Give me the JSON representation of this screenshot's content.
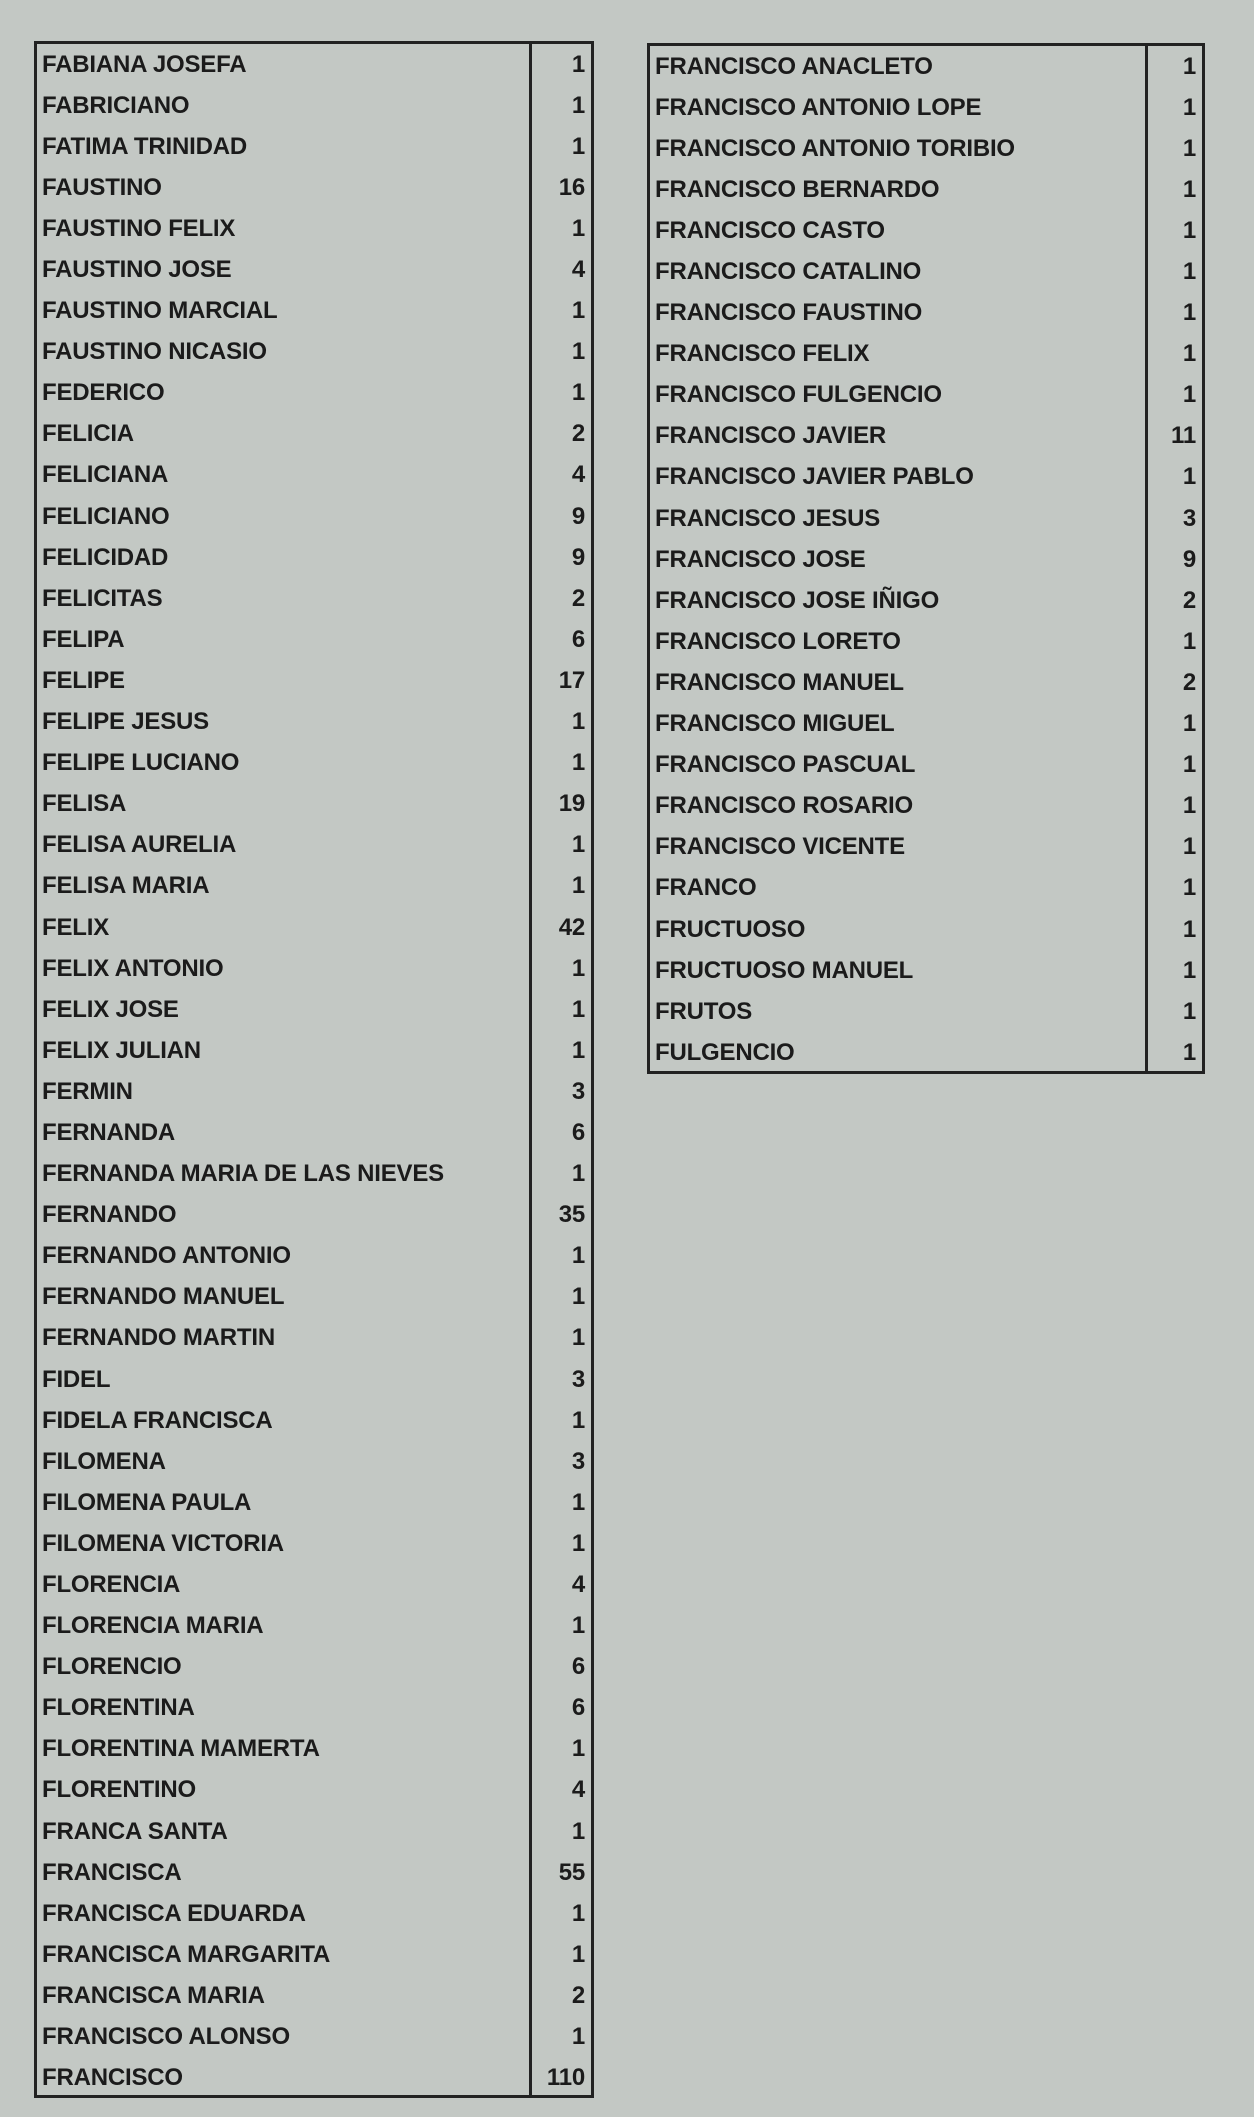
{
  "left_table": [
    [
      "FABIANA JOSEFA",
      "1"
    ],
    [
      "FABRICIANO",
      "1"
    ],
    [
      "FATIMA TRINIDAD",
      "1"
    ],
    [
      "FAUSTINO",
      "16"
    ],
    [
      "FAUSTINO FELIX",
      "1"
    ],
    [
      "FAUSTINO JOSE",
      "4"
    ],
    [
      "FAUSTINO MARCIAL",
      "1"
    ],
    [
      "FAUSTINO NICASIO",
      "1"
    ],
    [
      "FEDERICO",
      "1"
    ],
    [
      "FELICIA",
      "2"
    ],
    [
      "FELICIANA",
      "4"
    ],
    [
      "FELICIANO",
      "9"
    ],
    [
      "FELICIDAD",
      "9"
    ],
    [
      "FELICITAS",
      "2"
    ],
    [
      "FELIPA",
      "6"
    ],
    [
      "FELIPE",
      "17"
    ],
    [
      "FELIPE JESUS",
      "1"
    ],
    [
      "FELIPE LUCIANO",
      "1"
    ],
    [
      "FELISA",
      "19"
    ],
    [
      "FELISA AURELIA",
      "1"
    ],
    [
      "FELISA MARIA",
      "1"
    ],
    [
      "FELIX",
      "42"
    ],
    [
      "FELIX ANTONIO",
      "1"
    ],
    [
      "FELIX JOSE",
      "1"
    ],
    [
      "FELIX JULIAN",
      "1"
    ],
    [
      "FERMIN",
      "3"
    ],
    [
      "FERNANDA",
      "6"
    ],
    [
      "FERNANDA MARIA DE LAS NIEVES",
      "1"
    ],
    [
      "FERNANDO",
      "35"
    ],
    [
      "FERNANDO ANTONIO",
      "1"
    ],
    [
      "FERNANDO MANUEL",
      "1"
    ],
    [
      "FERNANDO MARTIN",
      "1"
    ],
    [
      "FIDEL",
      "3"
    ],
    [
      "FIDELA FRANCISCA",
      "1"
    ],
    [
      "FILOMENA",
      "3"
    ],
    [
      "FILOMENA PAULA",
      "1"
    ],
    [
      "FILOMENA VICTORIA",
      "1"
    ],
    [
      "FLORENCIA",
      "4"
    ],
    [
      "FLORENCIA MARIA",
      "1"
    ],
    [
      "FLORENCIO",
      "6"
    ],
    [
      "FLORENTINA",
      "6"
    ],
    [
      "FLORENTINA MAMERTA",
      "1"
    ],
    [
      "FLORENTINO",
      "4"
    ],
    [
      "FRANCA SANTA",
      "1"
    ],
    [
      "FRANCISCA",
      "55"
    ],
    [
      "FRANCISCA EDUARDA",
      "1"
    ],
    [
      "FRANCISCA MARGARITA",
      "1"
    ],
    [
      "FRANCISCA MARIA",
      "2"
    ],
    [
      "FRANCISCO ALONSO",
      "1"
    ],
    [
      "FRANCISCO",
      "110"
    ]
  ],
  "right_table": [
    [
      "FRANCISCO ANACLETO",
      "1"
    ],
    [
      "FRANCISCO ANTONIO LOPE",
      "1"
    ],
    [
      "FRANCISCO ANTONIO TORIBIO",
      "1"
    ],
    [
      "FRANCISCO BERNARDO",
      "1"
    ],
    [
      "FRANCISCO CASTO",
      "1"
    ],
    [
      "FRANCISCO CATALINO",
      "1"
    ],
    [
      "FRANCISCO FAUSTINO",
      "1"
    ],
    [
      "FRANCISCO FELIX",
      "1"
    ],
    [
      "FRANCISCO FULGENCIO",
      "1"
    ],
    [
      "FRANCISCO JAVIER",
      "11"
    ],
    [
      "FRANCISCO JAVIER PABLO",
      "1"
    ],
    [
      "FRANCISCO JESUS",
      "3"
    ],
    [
      "FRANCISCO JOSE",
      "9"
    ],
    [
      "FRANCISCO JOSE IÑIGO",
      "2"
    ],
    [
      "FRANCISCO LORETO",
      "1"
    ],
    [
      "FRANCISCO MANUEL",
      "2"
    ],
    [
      "FRANCISCO MIGUEL",
      "1"
    ],
    [
      "FRANCISCO PASCUAL",
      "1"
    ],
    [
      "FRANCISCO ROSARIO",
      "1"
    ],
    [
      "FRANCISCO VICENTE",
      "1"
    ],
    [
      "FRANCO",
      "1"
    ],
    [
      "FRUCTUOSO",
      "1"
    ],
    [
      "FRUCTUOSO MANUEL",
      "1"
    ],
    [
      "FRUTOS",
      "1"
    ],
    [
      "FULGENCIO",
      "1"
    ]
  ]
}
